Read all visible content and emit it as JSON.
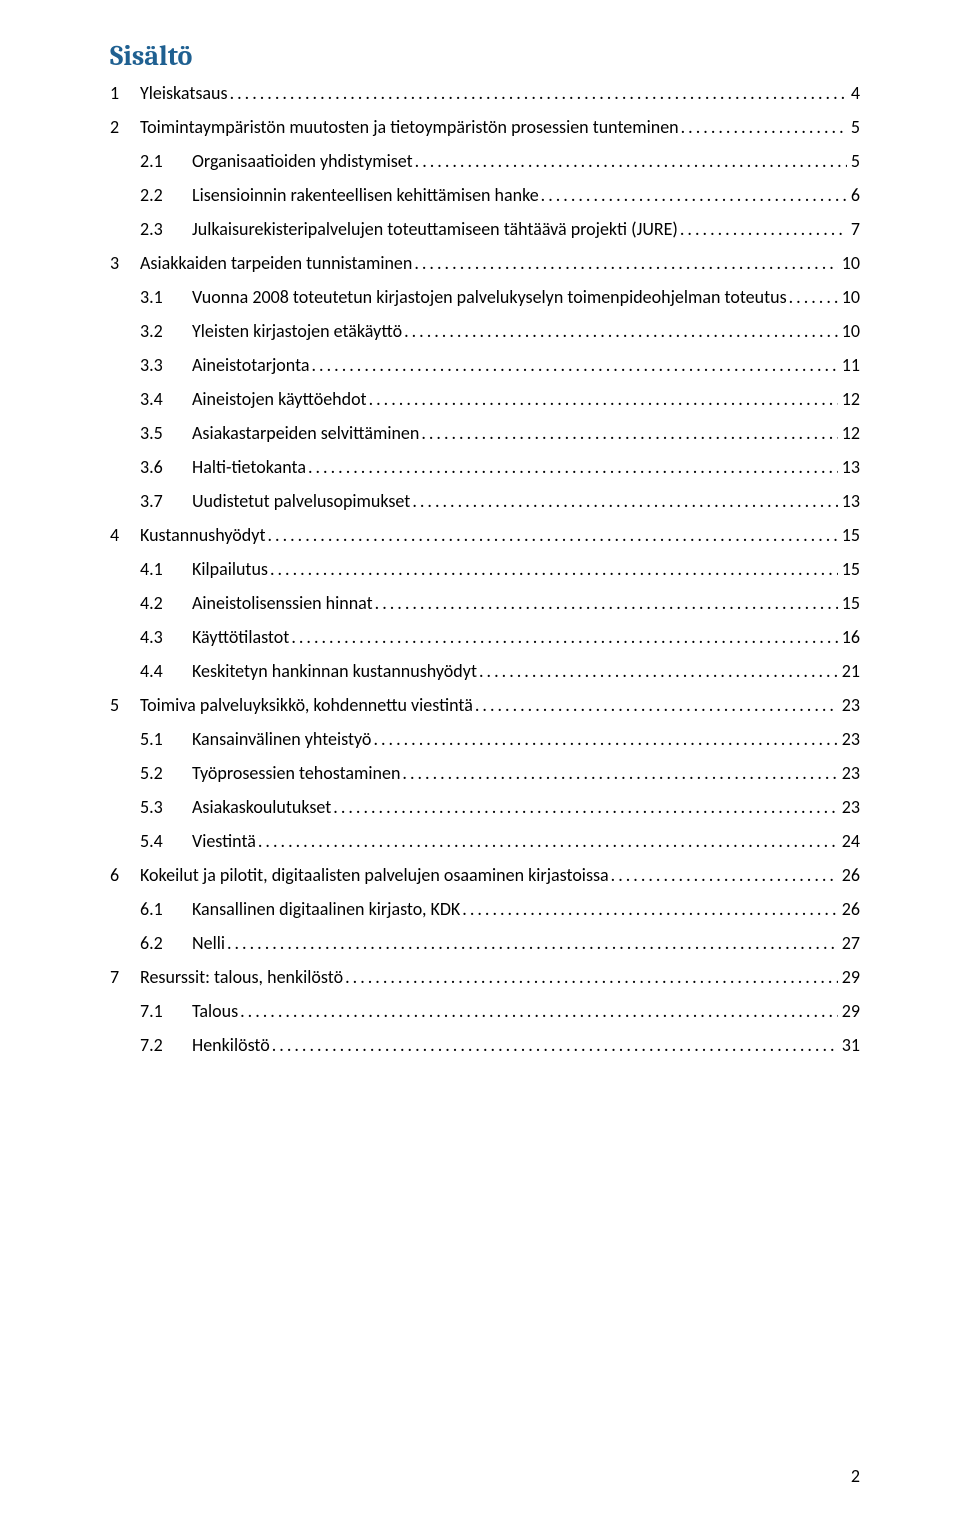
{
  "title": "Sisältö",
  "page_number": "2",
  "colors": {
    "title": "#1f6091",
    "text": "#000000",
    "background": "#ffffff"
  },
  "typography": {
    "title_fontsize_pt": 18,
    "body_fontsize_pt": 12,
    "title_font": "Cambria",
    "body_font": "Calibri"
  },
  "toc": [
    {
      "level": 1,
      "num": "1",
      "label": "Yleiskatsaus",
      "page": "4"
    },
    {
      "level": 1,
      "num": "2",
      "label": "Toimintaympäristön muutosten ja tietoympäristön prosessien tunteminen",
      "page": "5"
    },
    {
      "level": 2,
      "num": "2.1",
      "label": "Organisaatioiden yhdistymiset",
      "page": "5"
    },
    {
      "level": 2,
      "num": "2.2",
      "label": "Lisensioinnin rakenteellisen kehittämisen hanke",
      "page": "6"
    },
    {
      "level": 2,
      "num": "2.3",
      "label": "Julkaisurekisteripalvelujen toteuttamiseen tähtäävä projekti (JURE)",
      "page": "7"
    },
    {
      "level": 1,
      "num": "3",
      "label": "Asiakkaiden tarpeiden tunnistaminen",
      "page": "10"
    },
    {
      "level": 2,
      "num": "3.1",
      "label": "Vuonna 2008 toteutetun kirjastojen palvelukyselyn toimenpideohjelman toteutus",
      "page": "10"
    },
    {
      "level": 2,
      "num": "3.2",
      "label": "Yleisten kirjastojen etäkäyttö",
      "page": "10"
    },
    {
      "level": 2,
      "num": "3.3",
      "label": "Aineistotarjonta",
      "page": "11"
    },
    {
      "level": 2,
      "num": "3.4",
      "label": "Aineistojen käyttöehdot",
      "page": "12"
    },
    {
      "level": 2,
      "num": "3.5",
      "label": "Asiakastarpeiden selvittäminen",
      "page": "12"
    },
    {
      "level": 2,
      "num": "3.6",
      "label": "Halti-tietokanta",
      "page": "13"
    },
    {
      "level": 2,
      "num": "3.7",
      "label": "Uudistetut palvelusopimukset",
      "page": "13"
    },
    {
      "level": 1,
      "num": "4",
      "label": "Kustannushyödyt",
      "page": "15"
    },
    {
      "level": 2,
      "num": "4.1",
      "label": "Kilpailutus",
      "page": "15"
    },
    {
      "level": 2,
      "num": "4.2",
      "label": "Aineistolisenssien hinnat",
      "page": "15"
    },
    {
      "level": 2,
      "num": "4.3",
      "label": "Käyttötilastot",
      "page": "16"
    },
    {
      "level": 2,
      "num": "4.4",
      "label": "Keskitetyn hankinnan kustannushyödyt",
      "page": "21"
    },
    {
      "level": 1,
      "num": "5",
      "label": "Toimiva palveluyksikkö, kohdennettu viestintä",
      "page": "23"
    },
    {
      "level": 2,
      "num": "5.1",
      "label": "Kansainvälinen yhteistyö",
      "page": "23"
    },
    {
      "level": 2,
      "num": "5.2",
      "label": "Työprosessien tehostaminen",
      "page": "23"
    },
    {
      "level": 2,
      "num": "5.3",
      "label": "Asiakaskoulutukset",
      "page": "23"
    },
    {
      "level": 2,
      "num": "5.4",
      "label": "Viestintä",
      "page": "24"
    },
    {
      "level": 1,
      "num": "6",
      "label": "Kokeilut ja pilotit, digitaalisten palvelujen osaaminen kirjastoissa",
      "page": "26"
    },
    {
      "level": 2,
      "num": "6.1",
      "label": "Kansallinen digitaalinen kirjasto, KDK",
      "page": "26"
    },
    {
      "level": 2,
      "num": "6.2",
      "label": "Nelli",
      "page": "27"
    },
    {
      "level": 1,
      "num": "7",
      "label": "Resurssit: talous, henkilöstö",
      "page": "29"
    },
    {
      "level": 2,
      "num": "7.1",
      "label": "Talous",
      "page": "29"
    },
    {
      "level": 2,
      "num": "7.2",
      "label": "Henkilöstö",
      "page": "31"
    }
  ]
}
